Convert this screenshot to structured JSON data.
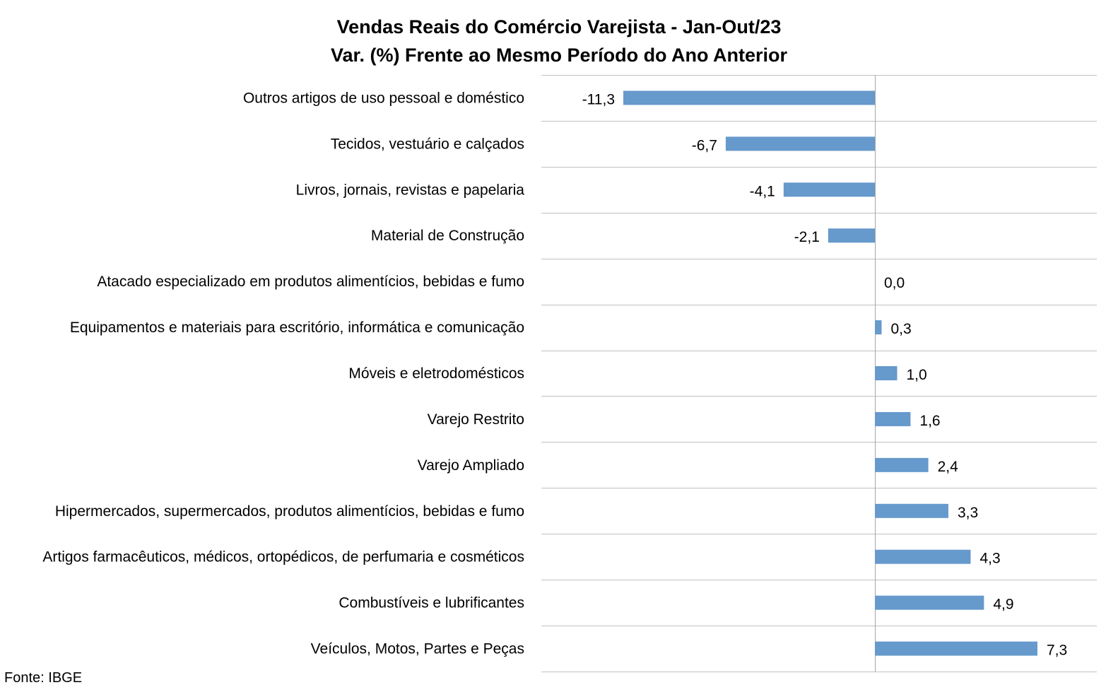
{
  "chart_data": {
    "type": "bar",
    "orientation": "horizontal",
    "title": "Vendas Reais do Comércio Varejista - Jan-Out/23",
    "subtitle": "Var. (%) Frente ao Mesmo Período do Ano Anterior",
    "categories": [
      "Outros artigos de uso pessoal e doméstico",
      "Tecidos, vestuário e calçados",
      "Livros, jornais, revistas e papelaria",
      "Material de Construção",
      "Atacado especializado em produtos alimentícios, bebidas e fumo",
      "Equipamentos e materiais para escritório, informática e comunicação",
      "Móveis e eletrodomésticos",
      "Varejo Restrito",
      "Varejo Ampliado",
      "Hipermercados, supermercados, produtos alimentícios, bebidas e fumo",
      "Artigos farmacêuticos, médicos, ortopédicos, de perfumaria e cosméticos",
      "Combustíveis e lubrificantes",
      "Veículos, Motos, Partes e Peças"
    ],
    "values": [
      -11.3,
      -6.7,
      -4.1,
      -2.1,
      0.0,
      0.3,
      1.0,
      1.6,
      2.4,
      3.3,
      4.3,
      4.9,
      7.3
    ],
    "value_labels": [
      "-11,3",
      "-6,7",
      "-4,1",
      "-2,1",
      "0,0",
      "0,3",
      "1,0",
      "1,6",
      "2,4",
      "3,3",
      "4,3",
      "4,9",
      "7,3"
    ],
    "xlim": [
      -15,
      10
    ],
    "grid": true,
    "bar_color": "#6699CC",
    "grid_color": "#C0C0C0"
  },
  "source": "Fonte: IBGE"
}
